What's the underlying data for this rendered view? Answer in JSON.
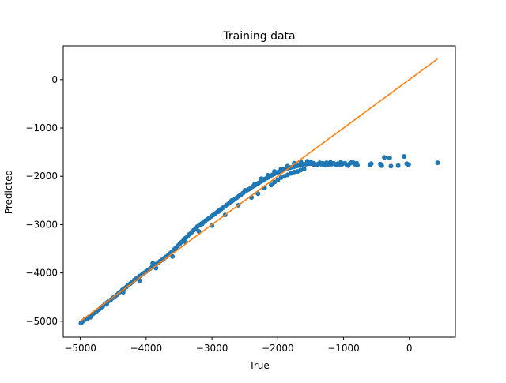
{
  "chart_data": {
    "type": "scatter",
    "title": "Training data",
    "xlabel": "True",
    "ylabel": "Predicted",
    "xlim": [
      -5260,
      700
    ],
    "ylim": [
      -5330,
      700
    ],
    "x_ticks": [
      -5000,
      -4000,
      -3000,
      -2000,
      -1000,
      0
    ],
    "y_ticks": [
      -5000,
      -4000,
      -3000,
      -2000,
      -1000,
      0
    ],
    "x_tick_labels": [
      "−5000",
      "−4000",
      "−3000",
      "−2000",
      "−1000",
      "0"
    ],
    "y_tick_labels": [
      "−5000",
      "−4000",
      "−3000",
      "−2000",
      "−1000",
      "0"
    ],
    "grid": false,
    "series": [
      {
        "kind": "scatter",
        "color": "#1f77b4",
        "points": [
          [
            -4990,
            -5040
          ],
          [
            -4970,
            -5010
          ],
          [
            -4950,
            -4990
          ],
          [
            -4930,
            -4960
          ],
          [
            -4900,
            -4950
          ],
          [
            -4870,
            -4910
          ],
          [
            -4840,
            -4880
          ],
          [
            -4810,
            -4850
          ],
          [
            -4780,
            -4820
          ],
          [
            -4750,
            -4790
          ],
          [
            -4720,
            -4760
          ],
          [
            -4690,
            -4720
          ],
          [
            -4660,
            -4690
          ],
          [
            -4630,
            -4650
          ],
          [
            -4600,
            -4620
          ],
          [
            -4570,
            -4580
          ],
          [
            -4540,
            -4560
          ],
          [
            -4510,
            -4520
          ],
          [
            -4480,
            -4490
          ],
          [
            -4450,
            -4460
          ],
          [
            -4420,
            -4420
          ],
          [
            -4390,
            -4390
          ],
          [
            -4360,
            -4350
          ],
          [
            -4330,
            -4320
          ],
          [
            -4300,
            -4290
          ],
          [
            -4270,
            -4250
          ],
          [
            -4240,
            -4220
          ],
          [
            -4210,
            -4190
          ],
          [
            -4180,
            -4150
          ],
          [
            -4150,
            -4120
          ],
          [
            -4120,
            -4090
          ],
          [
            -4090,
            -4060
          ],
          [
            -4060,
            -4030
          ],
          [
            -4030,
            -4000
          ],
          [
            -4000,
            -3970
          ],
          [
            -3970,
            -3940
          ],
          [
            -3940,
            -3910
          ],
          [
            -3910,
            -3880
          ],
          [
            -3880,
            -3850
          ],
          [
            -3850,
            -3820
          ],
          [
            -3820,
            -3790
          ],
          [
            -3790,
            -3760
          ],
          [
            -3760,
            -3730
          ],
          [
            -3730,
            -3700
          ],
          [
            -3700,
            -3670
          ],
          [
            -3670,
            -3640
          ],
          [
            -3640,
            -3600
          ],
          [
            -3610,
            -3560
          ],
          [
            -3580,
            -3520
          ],
          [
            -3550,
            -3480
          ],
          [
            -3520,
            -3440
          ],
          [
            -3490,
            -3400
          ],
          [
            -3460,
            -3360
          ],
          [
            -3430,
            -3320
          ],
          [
            -3400,
            -3280
          ],
          [
            -3370,
            -3240
          ],
          [
            -3340,
            -3200
          ],
          [
            -3310,
            -3160
          ],
          [
            -3280,
            -3120
          ],
          [
            -3250,
            -3080
          ],
          [
            -3220,
            -3040
          ],
          [
            -3190,
            -3010
          ],
          [
            -3160,
            -2980
          ],
          [
            -3130,
            -2950
          ],
          [
            -3100,
            -2920
          ],
          [
            -3070,
            -2890
          ],
          [
            -3040,
            -2860
          ],
          [
            -3010,
            -2830
          ],
          [
            -2980,
            -2800
          ],
          [
            -2950,
            -2770
          ],
          [
            -2920,
            -2740
          ],
          [
            -2890,
            -2710
          ],
          [
            -2860,
            -2680
          ],
          [
            -2830,
            -2650
          ],
          [
            -2800,
            -2620
          ],
          [
            -2770,
            -2590
          ],
          [
            -2740,
            -2560
          ],
          [
            -2710,
            -2530
          ],
          [
            -2680,
            -2500
          ],
          [
            -2650,
            -2470
          ],
          [
            -2620,
            -2440
          ],
          [
            -2590,
            -2410
          ],
          [
            -2560,
            -2380
          ],
          [
            -2530,
            -2350
          ],
          [
            -2500,
            -2320
          ],
          [
            -2470,
            -2290
          ],
          [
            -2440,
            -2270
          ],
          [
            -2410,
            -2240
          ],
          [
            -2380,
            -2210
          ],
          [
            -2350,
            -2190
          ],
          [
            -2320,
            -2160
          ],
          [
            -2290,
            -2140
          ],
          [
            -2260,
            -2110
          ],
          [
            -2230,
            -2090
          ],
          [
            -2200,
            -2060
          ],
          [
            -2170,
            -2040
          ],
          [
            -2140,
            -2020
          ],
          [
            -2110,
            -1990
          ],
          [
            -2080,
            -1970
          ],
          [
            -2050,
            -1950
          ],
          [
            -2020,
            -1930
          ],
          [
            -1990,
            -1910
          ],
          [
            -1960,
            -1890
          ],
          [
            -1930,
            -1870
          ],
          [
            -1900,
            -1860
          ],
          [
            -1870,
            -1840
          ],
          [
            -1840,
            -1830
          ],
          [
            -1810,
            -1820
          ],
          [
            -1780,
            -1810
          ],
          [
            -1750,
            -1800
          ],
          [
            -1720,
            -1790
          ],
          [
            -1690,
            -1780
          ],
          [
            -1660,
            -1770
          ],
          [
            -1630,
            -1760
          ],
          [
            -1600,
            -1750
          ],
          [
            -1570,
            -1750
          ],
          [
            -1540,
            -1740
          ],
          [
            -1510,
            -1740
          ],
          [
            -1480,
            -1740
          ],
          [
            -1450,
            -1730
          ],
          [
            -4850,
            -4920
          ],
          [
            -4600,
            -4650
          ],
          [
            -4350,
            -4400
          ],
          [
            -4100,
            -4160
          ],
          [
            -3850,
            -3900
          ],
          [
            -3600,
            -3660
          ],
          [
            -3400,
            -3360
          ],
          [
            -3200,
            -3140
          ],
          [
            -3000,
            -3020
          ],
          [
            -2800,
            -2800
          ],
          [
            -2600,
            -2600
          ],
          [
            -2400,
            -2440
          ],
          [
            -2300,
            -2360
          ],
          [
            -2200,
            -2240
          ],
          [
            -2100,
            -2180
          ],
          [
            -2050,
            -2120
          ],
          [
            -2000,
            -2080
          ],
          [
            -1950,
            -2030
          ],
          [
            -1900,
            -2000
          ],
          [
            -1850,
            -1970
          ],
          [
            -1800,
            -1940
          ],
          [
            -1750,
            -1910
          ],
          [
            -1700,
            -1900
          ],
          [
            -1650,
            -1870
          ],
          [
            -1600,
            -1850
          ],
          [
            -3900,
            -3800
          ],
          [
            -3300,
            -3150
          ],
          [
            -3150,
            -2990
          ],
          [
            -2900,
            -2730
          ],
          [
            -2700,
            -2500
          ],
          [
            -2500,
            -2290
          ],
          [
            -2350,
            -2160
          ],
          [
            -2250,
            -2050
          ],
          [
            -2150,
            -1980
          ],
          [
            -2050,
            -1900
          ],
          [
            -1950,
            -1850
          ],
          [
            -1850,
            -1790
          ],
          [
            -1750,
            -1730
          ],
          [
            -1650,
            -1700
          ],
          [
            -1550,
            -1690
          ],
          [
            -1500,
            -1700
          ],
          [
            -1450,
            -1760
          ],
          [
            -1400,
            -1760
          ],
          [
            -1380,
            -1740
          ],
          [
            -1360,
            -1720
          ],
          [
            -1340,
            -1750
          ],
          [
            -1320,
            -1730
          ],
          [
            -1300,
            -1770
          ],
          [
            -1280,
            -1740
          ],
          [
            -1260,
            -1720
          ],
          [
            -1240,
            -1760
          ],
          [
            -1220,
            -1740
          ],
          [
            -1200,
            -1710
          ],
          [
            -1180,
            -1750
          ],
          [
            -1150,
            -1730
          ],
          [
            -1120,
            -1770
          ],
          [
            -1090,
            -1740
          ],
          [
            -1060,
            -1760
          ],
          [
            -1040,
            -1710
          ],
          [
            -1020,
            -1750
          ],
          [
            -980,
            -1730
          ],
          [
            -950,
            -1760
          ],
          [
            -930,
            -1780
          ],
          [
            -900,
            -1730
          ],
          [
            -870,
            -1700
          ],
          [
            -850,
            -1720
          ],
          [
            -830,
            -1750
          ],
          [
            -800,
            -1730
          ],
          [
            -790,
            -1770
          ],
          [
            -600,
            -1770
          ],
          [
            -580,
            -1740
          ],
          [
            -440,
            -1750
          ],
          [
            -420,
            -1780
          ],
          [
            -380,
            -1610
          ],
          [
            -300,
            -1620
          ],
          [
            -280,
            -1790
          ],
          [
            -170,
            -1780
          ],
          [
            -80,
            -1590
          ],
          [
            -40,
            -1740
          ],
          [
            -10,
            -1760
          ],
          [
            430,
            -1720
          ]
        ]
      }
    ],
    "reference_line": {
      "kind": "line",
      "color": "#ff7f0e",
      "x": [
        -5000,
        430
      ],
      "y": [
        -5000,
        430
      ]
    }
  }
}
